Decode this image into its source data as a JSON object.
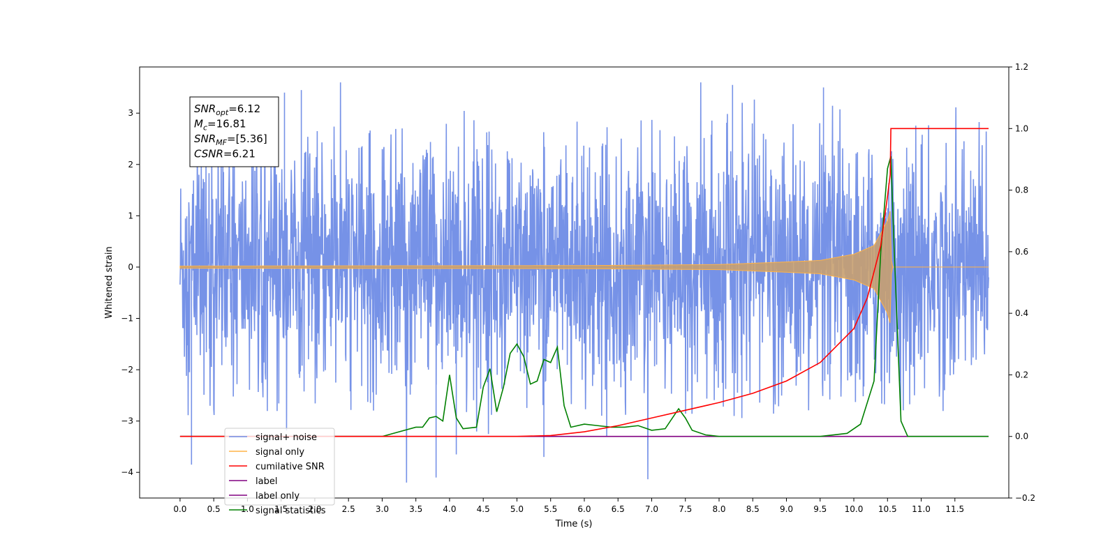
{
  "chart_data": {
    "type": "line",
    "xlabel": "Time (s)",
    "ylabel": "Whitened strain",
    "xlim": [
      -0.6,
      12.3
    ],
    "ylim": [
      -4.5,
      3.9
    ],
    "y2lim": [
      -0.2,
      1.2
    ],
    "x_ticks": [
      "0.0",
      "0.5",
      "1.0",
      "1.5",
      "2.0",
      "2.5",
      "3.0",
      "3.5",
      "4.0",
      "4.5",
      "5.0",
      "5.5",
      "6.0",
      "6.5",
      "7.0",
      "7.5",
      "8.0",
      "8.5",
      "9.0",
      "9.5",
      "10.0",
      "10.5",
      "11.0",
      "11.5"
    ],
    "y_ticks": [
      "−4",
      "−3",
      "−2",
      "−1",
      "0",
      "1",
      "2",
      "3"
    ],
    "y2_ticks": [
      "−0.2",
      "0.0",
      "0.2",
      "0.4",
      "0.6",
      "0.8",
      "1.0",
      "1.2"
    ],
    "annotation": {
      "lines": [
        {
          "base": "SNR",
          "sub": "opt",
          "rest": "=6.12"
        },
        {
          "base": "M",
          "sub": "c",
          "rest": "=16.81"
        },
        {
          "base": "SNR",
          "sub": "MF",
          "rest": "=[5.36]"
        },
        {
          "base": "CSNR",
          "sub": "",
          "rest": "=6.21"
        }
      ]
    },
    "legend": {
      "placement": "lower-left",
      "entries": [
        {
          "label": "signal+ noise",
          "color": "#6f8ce6"
        },
        {
          "label": "signal only",
          "color": "#ffb347"
        },
        {
          "label": "cumilative SNR",
          "color": "#ff0000"
        },
        {
          "label": "label",
          "color": "#800080"
        },
        {
          "label": "label only",
          "color": "#800080"
        },
        {
          "label": "signal statistics",
          "color": "#008000"
        }
      ]
    },
    "series": [
      {
        "name": "signal+ noise",
        "axis": "left",
        "color": "#6f8ce6",
        "x_range": [
          0.0,
          12.0
        ],
        "envelope_typical": [
          -2.0,
          2.0
        ],
        "notable_extremes": [
          {
            "x": 0.17,
            "y": -3.85
          },
          {
            "x": 1.55,
            "y": 3.4
          },
          {
            "x": 1.8,
            "y": 3.45
          },
          {
            "x": 3.8,
            "y": -4.1
          },
          {
            "x": 4.1,
            "y": -3.65
          },
          {
            "x": 5.4,
            "y": -3.7
          },
          {
            "x": 8.2,
            "y": 3.55
          },
          {
            "x": 9.55,
            "y": 3.5
          }
        ]
      },
      {
        "name": "signal only",
        "axis": "left",
        "color": "#ffb347",
        "chirp_amplitude_points": [
          {
            "x": 0.0,
            "a": 0.02
          },
          {
            "x": 6.0,
            "a": 0.03
          },
          {
            "x": 8.0,
            "a": 0.05
          },
          {
            "x": 9.0,
            "a": 0.1
          },
          {
            "x": 9.5,
            "a": 0.13
          },
          {
            "x": 10.0,
            "a": 0.25
          },
          {
            "x": 10.3,
            "a": 0.42
          },
          {
            "x": 10.5,
            "a": 0.9
          },
          {
            "x": 10.54,
            "a": 1.1
          },
          {
            "x": 10.56,
            "a": 0.0
          },
          {
            "x": 12.0,
            "a": 0.0
          }
        ]
      },
      {
        "name": "cumilative SNR",
        "axis": "right",
        "color": "#ff0000",
        "x": [
          0.0,
          5.0,
          5.5,
          6.0,
          6.5,
          7.0,
          7.5,
          8.0,
          8.5,
          9.0,
          9.5,
          10.0,
          10.2,
          10.4,
          10.5,
          10.54,
          10.55,
          12.0
        ],
        "y": [
          0.0,
          0.0,
          0.003,
          0.015,
          0.035,
          0.06,
          0.085,
          0.11,
          0.14,
          0.18,
          0.24,
          0.35,
          0.45,
          0.62,
          0.78,
          0.85,
          1.0,
          1.0
        ]
      },
      {
        "name": "label",
        "axis": "right",
        "color": "#800080",
        "x": [
          0.0,
          12.0
        ],
        "y": [
          0.0,
          0.0
        ]
      },
      {
        "name": "signal statistics",
        "axis": "right",
        "color": "#008000",
        "x": [
          0.0,
          3.0,
          3.5,
          3.6,
          3.7,
          3.8,
          3.9,
          4.0,
          4.1,
          4.2,
          4.4,
          4.5,
          4.6,
          4.7,
          4.8,
          4.9,
          5.0,
          5.1,
          5.2,
          5.3,
          5.4,
          5.5,
          5.6,
          5.7,
          5.8,
          6.0,
          6.2,
          6.4,
          6.6,
          6.8,
          7.0,
          7.2,
          7.4,
          7.5,
          7.6,
          7.8,
          8.0,
          9.0,
          9.5,
          9.9,
          10.1,
          10.3,
          10.4,
          10.5,
          10.55,
          10.6,
          10.7,
          10.8,
          12.0
        ],
        "y": [
          0.0,
          0.0,
          0.03,
          0.03,
          0.06,
          0.065,
          0.05,
          0.2,
          0.06,
          0.025,
          0.03,
          0.16,
          0.22,
          0.08,
          0.16,
          0.27,
          0.3,
          0.26,
          0.17,
          0.18,
          0.25,
          0.24,
          0.29,
          0.1,
          0.03,
          0.04,
          0.035,
          0.03,
          0.03,
          0.035,
          0.02,
          0.025,
          0.09,
          0.06,
          0.02,
          0.005,
          0.0,
          0.0,
          0.0,
          0.01,
          0.04,
          0.18,
          0.6,
          0.87,
          0.91,
          0.6,
          0.05,
          0.0,
          0.0
        ]
      }
    ]
  }
}
